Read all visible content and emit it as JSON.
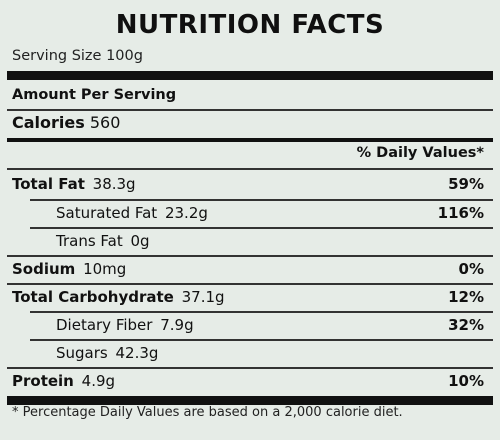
{
  "label": {
    "title": "NUTRITION FACTS",
    "serving_size": "Serving Size 100g",
    "amount_per_serving": "Amount Per Serving",
    "calories_label": "Calories",
    "calories_value": "560",
    "daily_values_header": "% Daily Values*",
    "nutrients": [
      {
        "name": "Total Fat",
        "amount": "38.3g",
        "dv": "59%"
      },
      {
        "name": "Saturated Fat",
        "amount": "23.2g",
        "dv": "116%"
      },
      {
        "name": "Trans Fat",
        "amount": "0g",
        "dv": ""
      },
      {
        "name": "Sodium",
        "amount": "10mg",
        "dv": "0%"
      },
      {
        "name": "Total Carbohydrate",
        "amount": "37.1g",
        "dv": "12%"
      },
      {
        "name": "Dietary Fiber",
        "amount": "7.9g",
        "dv": "32%"
      },
      {
        "name": "Sugars",
        "amount": "42.3g",
        "dv": ""
      },
      {
        "name": "Protein",
        "amount": "4.9g",
        "dv": "10%"
      }
    ],
    "footnote": "* Percentage Daily Values are based on a 2,000 calorie diet."
  }
}
